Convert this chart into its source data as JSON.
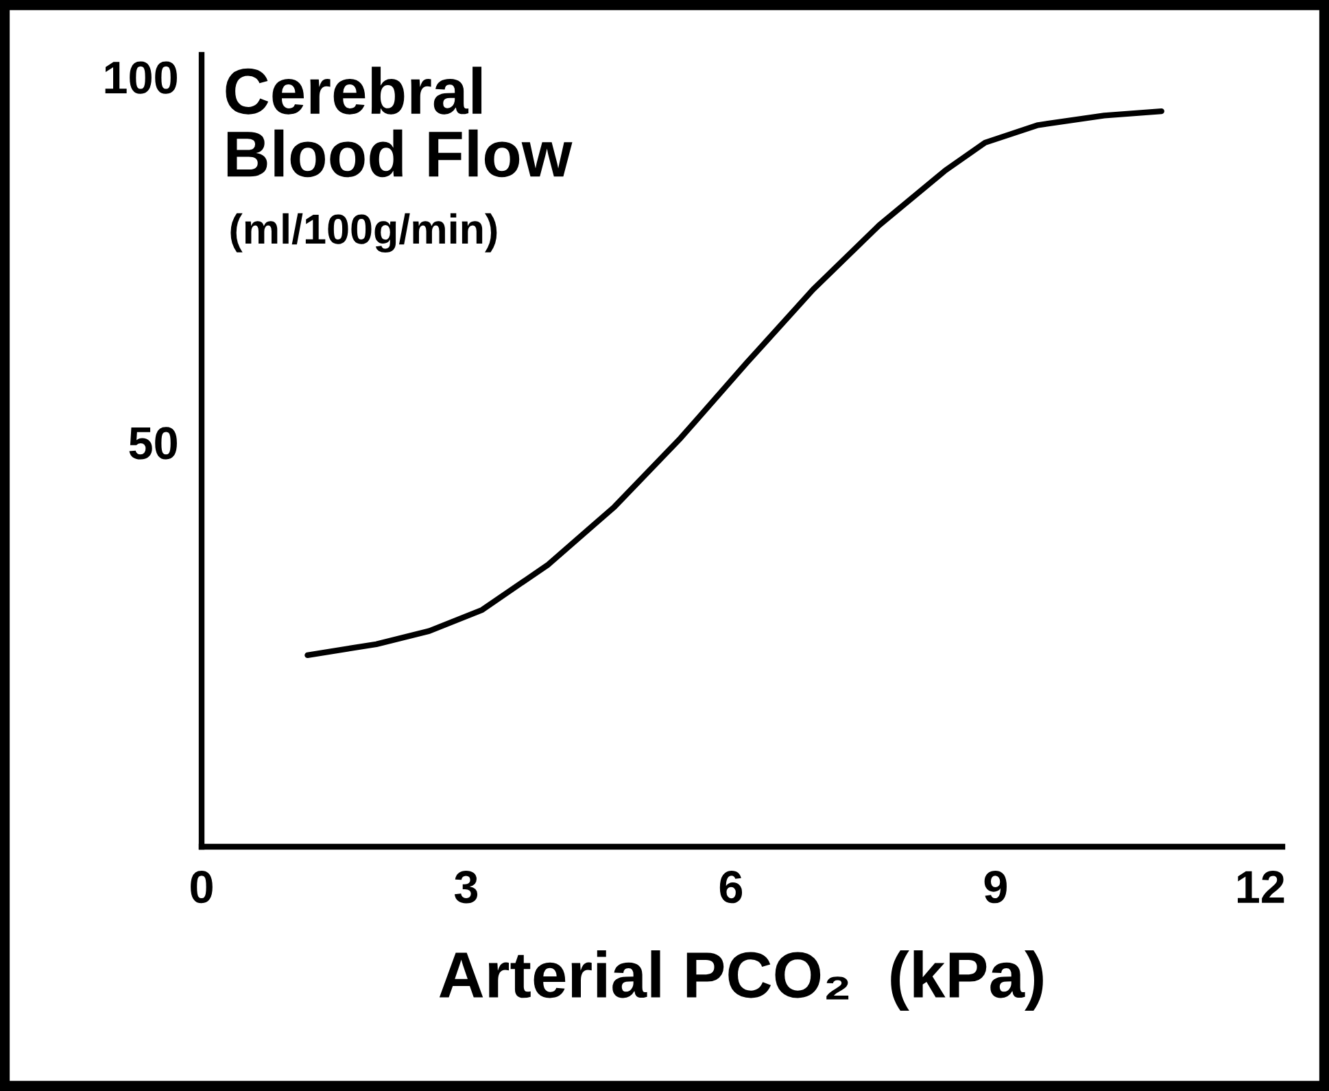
{
  "chart_data": {
    "type": "line",
    "ylabel": "Cerebral\nBlood Flow",
    "annotations": [
      "(ml/100g/min)"
    ],
    "xlabel": "Arterial PCO₂  (kPa)",
    "x": [
      1.2,
      1.98,
      2.58,
      3.18,
      3.93,
      4.68,
      5.43,
      6.18,
      6.93,
      7.68,
      8.43,
      8.88,
      9.48,
      10.23,
      10.88
    ],
    "values": [
      20.9,
      22.4,
      24.2,
      27.1,
      33.3,
      41.2,
      50.6,
      60.9,
      70.9,
      79.7,
      87.2,
      91.0,
      93.4,
      94.7,
      95.3
    ],
    "color": "#000000",
    "xlim": [
      0,
      12.25
    ],
    "ylim": [
      -5.3,
      103
    ],
    "xticks": [
      0,
      3,
      6,
      9,
      12
    ],
    "yticks": [
      50,
      100
    ],
    "grid": false
  }
}
